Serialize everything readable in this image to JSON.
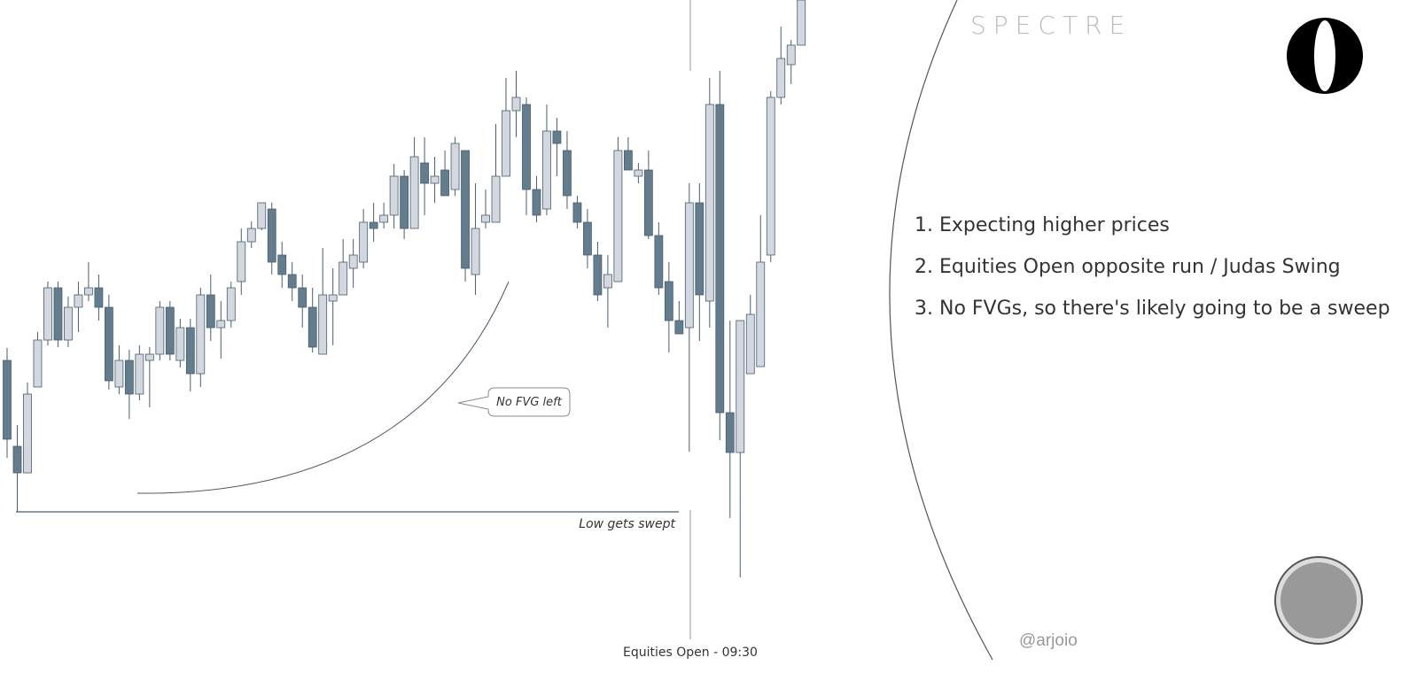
{
  "chart_data": {
    "type": "candlestick",
    "open": [
      353,
      256,
      226,
      323,
      376,
      435,
      376,
      413,
      427,
      435,
      413,
      323,
      353,
      315,
      353,
      360,
      413,
      353,
      390,
      338,
      427,
      390,
      398,
      442,
      487,
      502,
      524,
      472,
      450,
      435,
      413,
      360,
      420,
      427,
      457,
      464,
      509,
      509,
      517,
      561,
      502,
      576,
      553,
      568,
      546,
      590,
      450,
      509,
      509,
      561,
      635,
      642,
      546,
      524,
      612,
      590,
      531,
      509,
      472,
      435,
      442,
      590,
      561,
      568,
      494,
      442,
      398,
      390,
      531,
      420,
      642,
      294,
      249,
      338,
      346,
      472,
      650,
      687,
      709
    ],
    "high": [
      367,
      280,
      328,
      385,
      442,
      442,
      425,
      442,
      464,
      450,
      427,
      370,
      365,
      370,
      368,
      420,
      420,
      400,
      400,
      435,
      450,
      420,
      442,
      502,
      510,
      531,
      531,
      487,
      464,
      450,
      435,
      480,
      457,
      490,
      490,
      524,
      531,
      531,
      575,
      568,
      605,
      605,
      583,
      590,
      605,
      590,
      553,
      546,
      620,
      672,
      680,
      650,
      561,
      642,
      627,
      612,
      539,
      524,
      487,
      472,
      605,
      605,
      576,
      590,
      509,
      464,
      420,
      553,
      553,
      672,
      680,
      398,
      398,
      427,
      517,
      657,
      730,
      715,
      760
    ],
    "low": [
      243,
      182,
      226,
      323,
      370,
      368,
      368,
      385,
      420,
      398,
      320,
      315,
      287,
      308,
      300,
      353,
      353,
      345,
      318,
      323,
      375,
      355,
      390,
      427,
      480,
      500,
      450,
      435,
      420,
      390,
      362,
      360,
      370,
      427,
      435,
      457,
      487,
      502,
      502,
      490,
      502,
      517,
      531,
      539,
      539,
      442,
      427,
      502,
      509,
      561,
      605,
      517,
      509,
      517,
      561,
      524,
      502,
      457,
      420,
      390,
      442,
      568,
      553,
      490,
      427,
      362,
      383,
      250,
      375,
      390,
      263,
      175,
      108,
      338,
      346,
      464,
      642,
      665,
      709
    ],
    "close": [
      264,
      226,
      315,
      376,
      435,
      376,
      413,
      427,
      435,
      413,
      330,
      353,
      315,
      360,
      360,
      413,
      360,
      390,
      338,
      427,
      390,
      398,
      435,
      487,
      502,
      531,
      464,
      450,
      435,
      413,
      368,
      427,
      427,
      464,
      472,
      509,
      502,
      517,
      561,
      502,
      583,
      553,
      561,
      539,
      598,
      457,
      502,
      517,
      561,
      635,
      650,
      546,
      517,
      612,
      598,
      539,
      509,
      472,
      427,
      450,
      590,
      568,
      568,
      494,
      435,
      398,
      383,
      531,
      427,
      642,
      294,
      249,
      398,
      405,
      464,
      650,
      694,
      709,
      760
    ],
    "up_color": "#d3d7df",
    "down_color": "#647d8e",
    "ylim": [
      0,
      760
    ],
    "annotations": [
      "No FVG left",
      "Low gets swept",
      "Equities Open - 09:30"
    ]
  },
  "brand": "SPECTRE",
  "notes": [
    "1. Expecting higher prices",
    "2. Equities Open opposite run / Judas Swing",
    "3. No FVGs, so there's likely going to be a sweep"
  ],
  "handle": "@arjoio"
}
